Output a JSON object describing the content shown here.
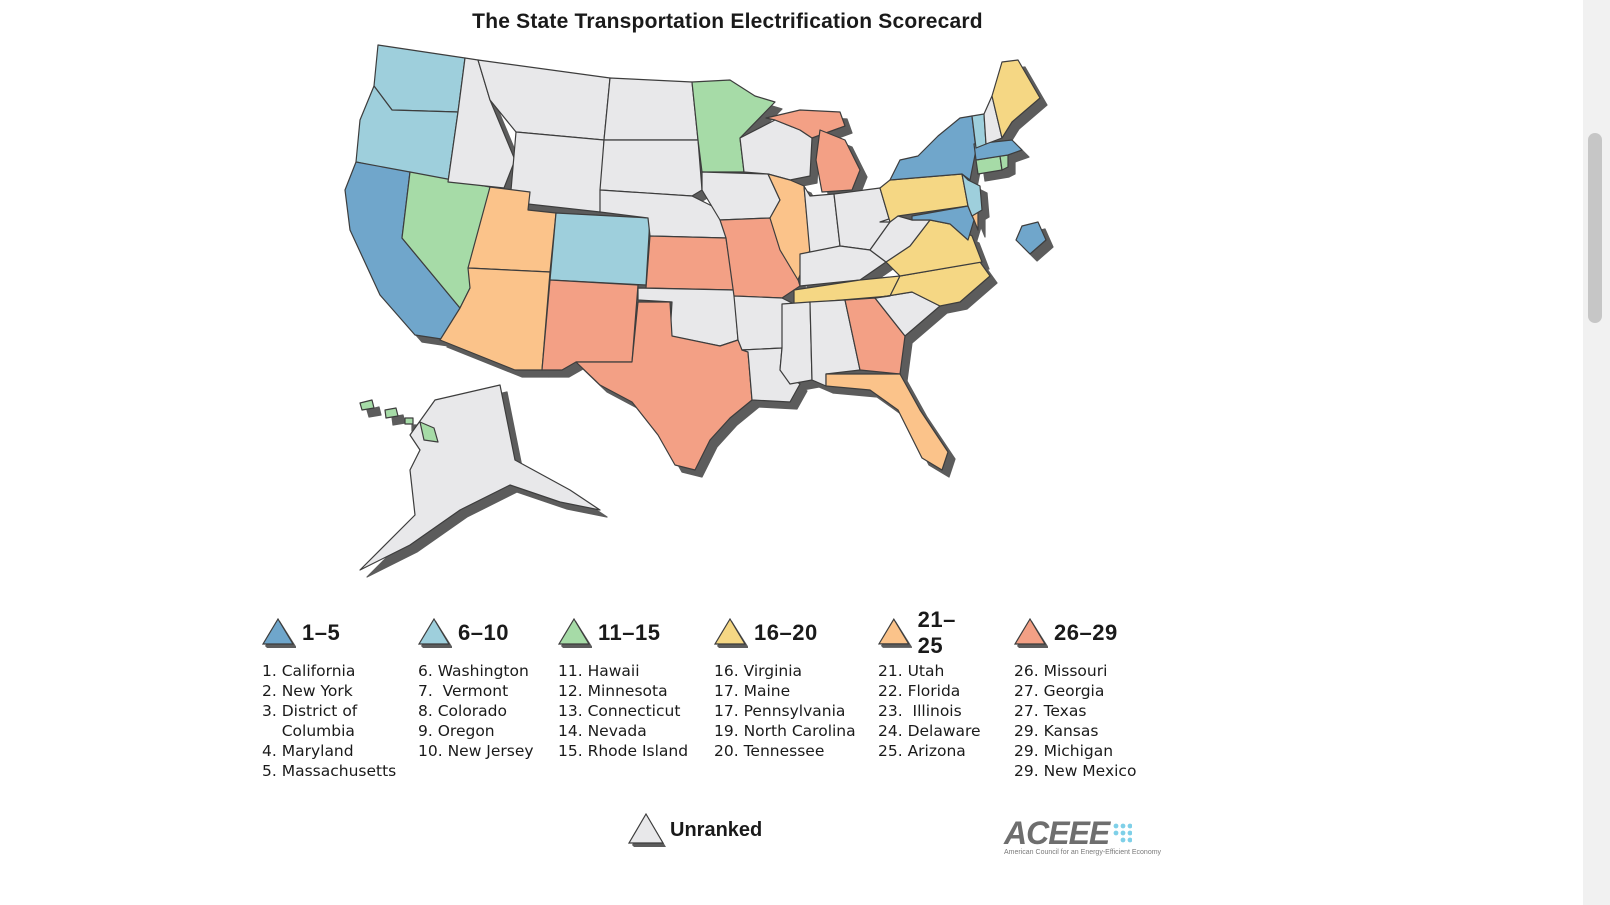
{
  "title": "The State Transportation Electrification Scorecard",
  "colors": {
    "tier1": "#6fa6cb",
    "tier2": "#9ecfdc",
    "tier3": "#a6dba7",
    "tier4": "#f5d784",
    "tier5": "#fbc38a",
    "tier6": "#f3a085",
    "unranked": "#e8e8ea",
    "shadow": "#5c5c5c"
  },
  "tiers": [
    {
      "label": "1–5",
      "color_key": "tier1",
      "entries": [
        "1. California",
        "2. New York",
        "3. District of",
        "    Columbia",
        "4. Maryland",
        "5. Massachusetts"
      ]
    },
    {
      "label": "6–10",
      "color_key": "tier2",
      "entries": [
        "6. Washington",
        "7.  Vermont",
        "8. Colorado",
        "9. Oregon",
        "10. New Jersey"
      ]
    },
    {
      "label": "11–15",
      "color_key": "tier3",
      "entries": [
        "11. Hawaii",
        "12. Minnesota",
        "13. Connecticut",
        "14. Nevada",
        "15. Rhode Island"
      ]
    },
    {
      "label": "16–20",
      "color_key": "tier4",
      "entries": [
        "16. Virginia",
        "17. Maine",
        "17. Pennsylvania",
        "19. North Carolina",
        "20. Tennessee"
      ]
    },
    {
      "label": "21–25",
      "color_key": "tier5",
      "entries": [
        "21. Utah",
        "22. Florida",
        "23.  Illinois",
        "24. Delaware",
        "25. Arizona"
      ]
    },
    {
      "label": "26–29",
      "color_key": "tier6",
      "entries": [
        "26. Missouri",
        "27. Georgia",
        "27. Texas",
        "29. Kansas",
        "29. Michigan",
        "29. New Mexico"
      ]
    }
  ],
  "unranked_label": "Unranked",
  "logo": {
    "word": "ACEEE",
    "subtitle": "American Council for an Energy-Efficient Economy"
  },
  "state_tiers": {
    "CA": "tier1",
    "NY": "tier1",
    "DC": "tier1",
    "MD": "tier1",
    "MA": "tier1",
    "WA": "tier2",
    "VT": "tier2",
    "CO": "tier2",
    "OR": "tier2",
    "NJ": "tier2",
    "HI": "tier3",
    "MN": "tier3",
    "CT": "tier3",
    "NV": "tier3",
    "RI": "tier3",
    "VA": "tier4",
    "ME": "tier4",
    "PA": "tier4",
    "NC": "tier4",
    "TN": "tier4",
    "UT": "tier5",
    "FL": "tier5",
    "IL": "tier5",
    "DE": "tier5",
    "AZ": "tier5",
    "MO": "tier6",
    "GA": "tier6",
    "TX": "tier6",
    "KS": "tier6",
    "MI": "tier6",
    "NM": "tier6"
  }
}
